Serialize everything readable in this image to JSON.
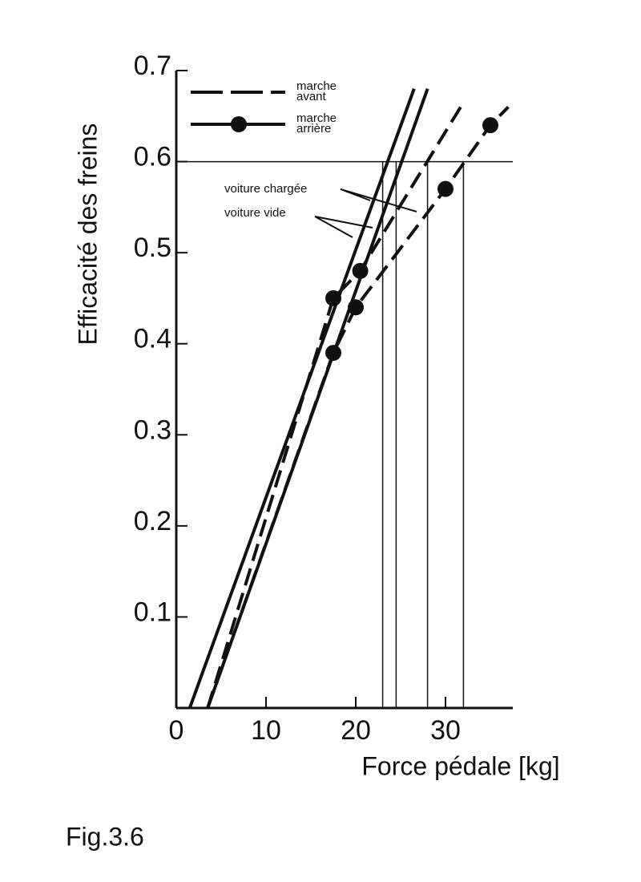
{
  "chart_data": {
    "type": "line",
    "xlabel": "Force pédale [kg]",
    "ylabel": "Efficacité des freins",
    "xlim": [
      0,
      37.5
    ],
    "ylim": [
      0,
      0.7
    ],
    "xticks": [
      0,
      10,
      20,
      30
    ],
    "yticks": [
      0.1,
      0.2,
      0.3,
      0.4,
      0.5,
      0.6,
      0.7
    ],
    "color": "#111",
    "series": [
      {
        "style": "solid",
        "x": [
          1.5,
          26.5
        ],
        "values": [
          0,
          0.68
        ]
      },
      {
        "style": "solid",
        "x": [
          3.5,
          28
        ],
        "values": [
          0,
          0.68
        ]
      },
      {
        "style": "dashed",
        "x": [
          3.5,
          17.5,
          20.5,
          32
        ],
        "values": [
          0,
          0.45,
          0.48,
          0.665
        ],
        "dots": {
          "x": [
            17.5,
            20.5
          ],
          "values": [
            0.45,
            0.48
          ]
        }
      },
      {
        "style": "dashed",
        "x": [
          3.5,
          17.5,
          20,
          30,
          35,
          37
        ],
        "values": [
          0,
          0.39,
          0.44,
          0.57,
          0.64,
          0.66
        ],
        "dots": {
          "x": [
            17.5,
            20,
            30,
            35
          ],
          "values": [
            0.39,
            0.44,
            0.57,
            0.64
          ]
        }
      }
    ],
    "ref_x": [
      23,
      24.5,
      28,
      32
    ],
    "ref_y": 0.6,
    "legend": [
      {
        "label": "marche avant",
        "style": "dashed"
      },
      {
        "label": "marche arrière",
        "style": "dots"
      }
    ],
    "annotations": [
      "voiture chargée",
      "voiture vide"
    ],
    "caption": "Fig.3.6"
  }
}
